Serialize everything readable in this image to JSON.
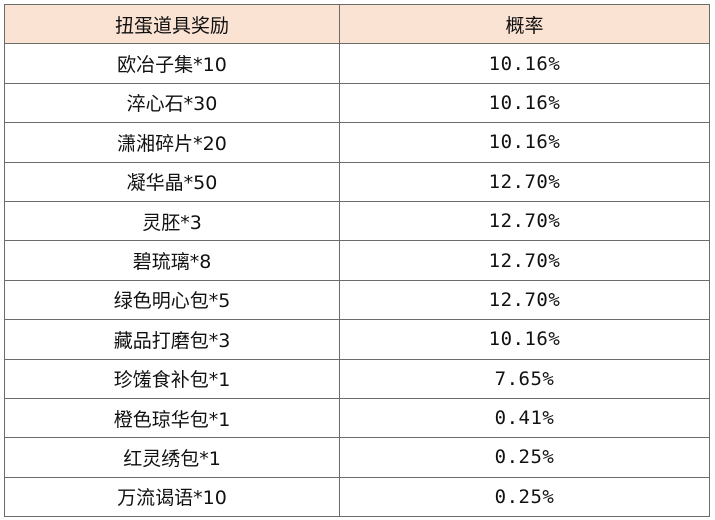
{
  "table": {
    "headers": {
      "item": "扭蛋道具奖励",
      "probability": "概率"
    },
    "rows": [
      {
        "item": "欧冶子集*10",
        "probability": "10.16%"
      },
      {
        "item": "淬心石*30",
        "probability": "10.16%"
      },
      {
        "item": "潇湘碎片*20",
        "probability": "10.16%"
      },
      {
        "item": "凝华晶*50",
        "probability": "12.70%"
      },
      {
        "item": "灵胚*3",
        "probability": "12.70%"
      },
      {
        "item": "碧琉璃*8",
        "probability": "12.70%"
      },
      {
        "item": "绿色明心包*5",
        "probability": "12.70%"
      },
      {
        "item": "藏品打磨包*3",
        "probability": "10.16%"
      },
      {
        "item": "珍馐食补包*1",
        "probability": "7.65%"
      },
      {
        "item": "橙色琼华包*1",
        "probability": "0.41%"
      },
      {
        "item": "红灵绣包*1",
        "probability": "0.25%"
      },
      {
        "item": "万流谒语*10",
        "probability": "0.25%"
      }
    ]
  }
}
